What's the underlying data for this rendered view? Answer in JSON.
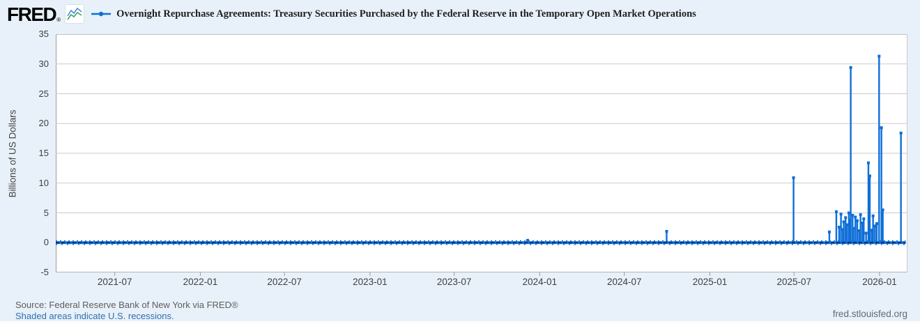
{
  "header": {
    "logo_text": "FRED",
    "logo_reg": "®",
    "title": "Overnight Repurchase Agreements: Treasury Securities Purchased by the Federal Reserve in the Temporary Open Market Operations"
  },
  "footer": {
    "source": "Source: Federal Reserve Bank of New York via FRED®",
    "recessions_note": "Shaded areas indicate U.S. recessions.",
    "site_link": "fred.stlouisfed.org"
  },
  "chart_data": {
    "type": "line",
    "title": "Overnight Repurchase Agreements: Treasury Securities Purchased by the Federal Reserve in the Temporary Open Market Operations",
    "ylabel": "Billions of US Dollars",
    "xlabel": "",
    "grid": true,
    "legend_position": "top",
    "y_axis": {
      "min": -5,
      "max": 35,
      "step": 5,
      "tick_labels": [
        "35",
        "30",
        "25",
        "20",
        "15",
        "10",
        "5",
        "0",
        "-5"
      ]
    },
    "x_axis": {
      "start": "2021-02-24",
      "end": "2026-03-02",
      "ticks": [
        {
          "label": "2021-07",
          "date": "2021-07-01"
        },
        {
          "label": "2022-01",
          "date": "2022-01-01"
        },
        {
          "label": "2022-07",
          "date": "2022-07-01"
        },
        {
          "label": "2023-01",
          "date": "2023-01-01"
        },
        {
          "label": "2023-07",
          "date": "2023-07-01"
        },
        {
          "label": "2024-01",
          "date": "2024-01-01"
        },
        {
          "label": "2024-07",
          "date": "2024-07-01"
        },
        {
          "label": "2025-01",
          "date": "2025-01-01"
        },
        {
          "label": "2025-07",
          "date": "2025-07-01"
        },
        {
          "label": "2026-01",
          "date": "2026-01-01"
        }
      ]
    },
    "baseline": {
      "value": 0,
      "start": "2021-02-24",
      "end": "2026-02-26",
      "note": "series is approximately 0 billions on all days except spike dates"
    },
    "spikes": [
      [
        "2023-12-06",
        0.4
      ],
      [
        "2024-09-30",
        1.9
      ],
      [
        "2025-06-30",
        10.9
      ],
      [
        "2025-09-15",
        1.8
      ],
      [
        "2025-09-30",
        5.2
      ],
      [
        "2025-10-06",
        2.6
      ],
      [
        "2025-10-10",
        4.8
      ],
      [
        "2025-10-14",
        2.2
      ],
      [
        "2025-10-16",
        3.5
      ],
      [
        "2025-10-20",
        4.2
      ],
      [
        "2025-10-23",
        3.0
      ],
      [
        "2025-10-27",
        5.0
      ],
      [
        "2025-10-29",
        3.8
      ],
      [
        "2025-10-31",
        29.4
      ],
      [
        "2025-11-04",
        4.6
      ],
      [
        "2025-11-06",
        2.4
      ],
      [
        "2025-11-10",
        4.3
      ],
      [
        "2025-11-14",
        3.7
      ],
      [
        "2025-11-18",
        2.0
      ],
      [
        "2025-11-21",
        4.7
      ],
      [
        "2025-11-25",
        3.3
      ],
      [
        "2025-11-28",
        4.0
      ],
      [
        "2025-12-03",
        1.6
      ],
      [
        "2025-12-08",
        13.4
      ],
      [
        "2025-12-11",
        11.2
      ],
      [
        "2025-12-15",
        2.1
      ],
      [
        "2025-12-18",
        4.5
      ],
      [
        "2025-12-22",
        2.8
      ],
      [
        "2025-12-26",
        3.2
      ],
      [
        "2025-12-31",
        31.3
      ],
      [
        "2026-01-05",
        19.3
      ],
      [
        "2026-01-08",
        5.5
      ],
      [
        "2026-02-16",
        18.4
      ]
    ],
    "colors": {
      "line": "#0e6fd8",
      "line_core": "#0a2a52",
      "grid": "#cbcbcb",
      "plot_bg": "#ffffff",
      "page_bg": "#e8f1f9",
      "tick_text": "#3f3f3f"
    }
  }
}
